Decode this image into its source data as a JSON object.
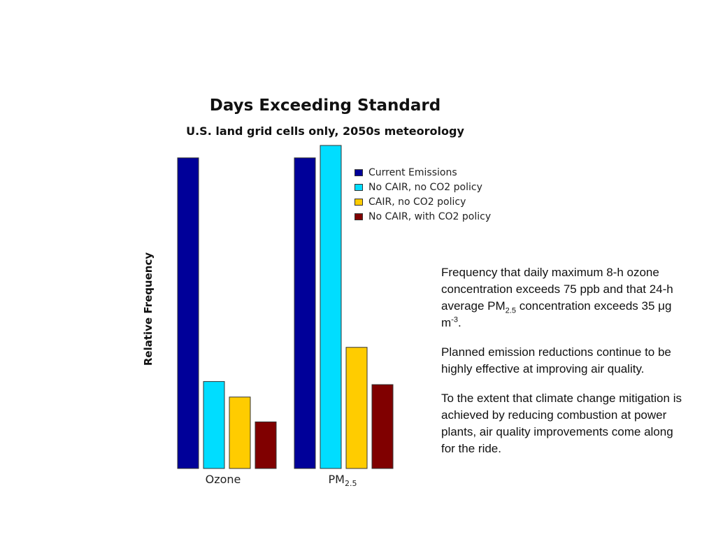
{
  "chart_data": {
    "type": "bar",
    "title": "Days Exceeding Standard",
    "subtitle": "U.S. land grid cells only, 2050s meteorology",
    "ylabel": "Relative Frequency",
    "xlabel": "",
    "categories": [
      {
        "main": "Ozone",
        "sub": ""
      },
      {
        "main": "PM",
        "sub": "2.5"
      }
    ],
    "ylim": [
      0,
      1.04
    ],
    "series": [
      {
        "name": "Current Emissions",
        "color": "#000099",
        "values": [
          1.0,
          1.0
        ]
      },
      {
        "name": "No CAIR, no CO2 policy",
        "color": "#00ddff",
        "values": [
          0.28,
          1.04
        ]
      },
      {
        "name": "CAIR, no CO2 policy",
        "color": "#ffcc00",
        "values": [
          0.23,
          0.39
        ]
      },
      {
        "name": "No CAIR, with CO2 policy",
        "color": "#800000",
        "values": [
          0.15,
          0.27
        ]
      }
    ],
    "legend_position": "top-right",
    "grid": false
  },
  "notes": {
    "p1_a": "Frequency that daily maximum 8-h ozone concentration exceeds 75 ppb and that 24-h average PM",
    "p1_sub": "2.5",
    "p1_b": " concentration exceeds 35 ",
    "p1_mu": "μ",
    "p1_c": "g m",
    "p1_sup": "-3",
    "p1_d": ".",
    "p2": "Planned emission reductions continue to be highly effective at improving air quality.",
    "p3": "To the extent that climate change mitigation is achieved by reducing combustion at power plants, air quality improvements come along for the ride."
  }
}
